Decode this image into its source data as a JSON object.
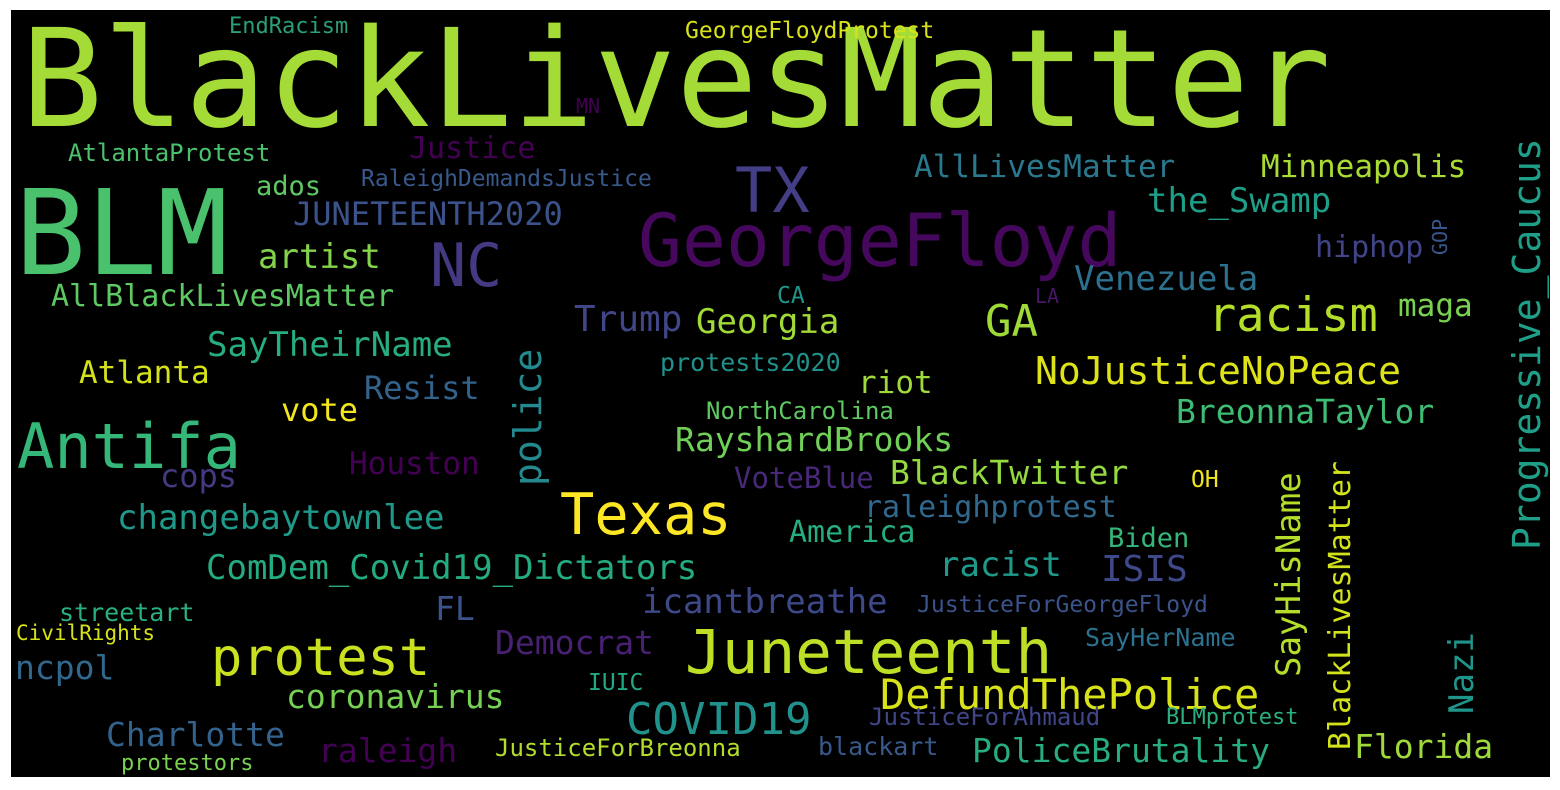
{
  "words": [
    {
      "text": "BlackLivesMatter",
      "color": "#a5db36"
    },
    {
      "text": "BLM",
      "color": "#4ac16d"
    },
    {
      "text": "GeorgeFloyd",
      "color": "#46085c"
    },
    {
      "text": "TX",
      "color": "#433e85"
    },
    {
      "text": "NC",
      "color": "#443983"
    },
    {
      "text": "Antifa",
      "color": "#35b779"
    },
    {
      "text": "Texas",
      "color": "#fde725"
    },
    {
      "text": "Juneteenth",
      "color": "#bddf26"
    },
    {
      "text": "protest",
      "color": "#cae11f"
    },
    {
      "text": "COVID19",
      "color": "#21918c"
    },
    {
      "text": "DefundThePolice",
      "color": "#d8e219"
    },
    {
      "text": "Progressive_Caucus",
      "color": "#1f9f88"
    },
    {
      "text": "racism",
      "color": "#b5de2b"
    },
    {
      "text": "GA",
      "color": "#a0da39"
    },
    {
      "text": "NoJusticeNoPeace",
      "color": "#dde318"
    },
    {
      "text": "police",
      "color": "#23898e"
    },
    {
      "text": "changebaytownlee",
      "color": "#1f9a8a"
    },
    {
      "text": "ComDem_Covid19_Dictators",
      "color": "#25ab82"
    },
    {
      "text": "SayHisName",
      "color": "#b5de2b"
    },
    {
      "text": "BlackLivesMatter",
      "color": "#d2e21b"
    },
    {
      "text": "Nazi",
      "color": "#1f968b"
    },
    {
      "text": "EndRacism",
      "color": "#2a9f78"
    },
    {
      "text": "GeorgeFloydProtest",
      "color": "#d8e219"
    },
    {
      "text": "MN",
      "color": "#440154"
    },
    {
      "text": "Justice",
      "color": "#440154"
    },
    {
      "text": "AtlantaProtest",
      "color": "#4ac16d"
    },
    {
      "text": "RaleighDemandsJustice",
      "color": "#38598c"
    },
    {
      "text": "ados",
      "color": "#5ec962"
    },
    {
      "text": "JUNETEENTH2020",
      "color": "#3b528b"
    },
    {
      "text": "AllLivesMatter",
      "color": "#2a788e"
    },
    {
      "text": "Minneapolis",
      "color": "#a8db34"
    },
    {
      "text": "the_Swamp",
      "color": "#1f9e89"
    },
    {
      "text": "hiphop",
      "color": "#414487"
    },
    {
      "text": "GOP",
      "color": "#39568c"
    },
    {
      "text": "artist",
      "color": "#84d44b"
    },
    {
      "text": "AllBlackLivesMatter",
      "color": "#5ec962"
    },
    {
      "text": "Venezuela",
      "color": "#2c728e"
    },
    {
      "text": "CA",
      "color": "#1f968b"
    },
    {
      "text": "LA",
      "color": "#481668"
    },
    {
      "text": "Trump",
      "color": "#404688"
    },
    {
      "text": "Georgia",
      "color": "#a2da37"
    },
    {
      "text": "maga",
      "color": "#7ad151"
    },
    {
      "text": "SayTheirName",
      "color": "#27ad81"
    },
    {
      "text": "protests2020",
      "color": "#20928c"
    },
    {
      "text": "Atlanta",
      "color": "#d5e21a"
    },
    {
      "text": "Resist",
      "color": "#33638d"
    },
    {
      "text": "riot",
      "color": "#9fda3a"
    },
    {
      "text": "vote",
      "color": "#f4e61e"
    },
    {
      "text": "NorthCarolina",
      "color": "#5ec962"
    },
    {
      "text": "BreonnaTaylor",
      "color": "#3fbc73"
    },
    {
      "text": "RayshardBrooks",
      "color": "#70cf57"
    },
    {
      "text": "Houston",
      "color": "#440154"
    },
    {
      "text": "cops",
      "color": "#443a83"
    },
    {
      "text": "BlackTwitter",
      "color": "#95d840"
    },
    {
      "text": "VoteBlue",
      "color": "#482878"
    },
    {
      "text": "OH",
      "color": "#f1e51d"
    },
    {
      "text": "raleighprotest",
      "color": "#31688e"
    },
    {
      "text": "America",
      "color": "#26ad81"
    },
    {
      "text": "Biden",
      "color": "#35b779"
    },
    {
      "text": "racist",
      "color": "#1f9a8a"
    },
    {
      "text": "ISIS",
      "color": "#3e4989"
    },
    {
      "text": "FL",
      "color": "#3b528b"
    },
    {
      "text": "icantbreathe",
      "color": "#3e4989"
    },
    {
      "text": "JusticeForGeorgeFloyd",
      "color": "#3b528b"
    },
    {
      "text": "streetart",
      "color": "#2ab07f"
    },
    {
      "text": "CivilRights",
      "color": "#d5e21a"
    },
    {
      "text": "SayHerName",
      "color": "#2c728e"
    },
    {
      "text": "Democrat",
      "color": "#482173"
    },
    {
      "text": "ncpol",
      "color": "#31688e"
    },
    {
      "text": "IUIC",
      "color": "#22a884"
    },
    {
      "text": "coronavirus",
      "color": "#75d054"
    },
    {
      "text": "Charlotte",
      "color": "#33638d"
    },
    {
      "text": "JusticeForAhmaud",
      "color": "#404688"
    },
    {
      "text": "BLMprotest",
      "color": "#2ab07f"
    },
    {
      "text": "raleigh",
      "color": "#440154"
    },
    {
      "text": "JusticeForBreonna",
      "color": "#b2dd2d"
    },
    {
      "text": "blackart",
      "color": "#38598c"
    },
    {
      "text": "PoliceBrutality",
      "color": "#27ad81"
    },
    {
      "text": "Florida",
      "color": "#9fda3a"
    },
    {
      "text": "protestors",
      "color": "#7ad151"
    }
  ]
}
